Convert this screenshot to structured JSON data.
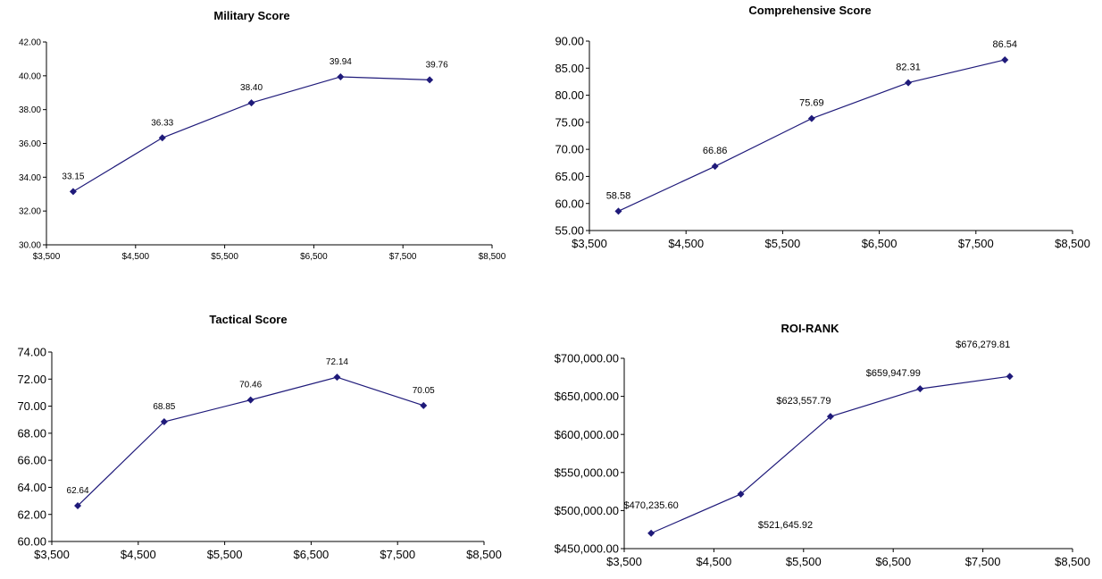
{
  "chart_data": [
    {
      "type": "line",
      "title": "Military Score",
      "x": [
        3800,
        4800,
        5800,
        6800,
        7800
      ],
      "series": [
        {
          "values": [
            33.15,
            36.33,
            38.4,
            39.94,
            39.76
          ]
        }
      ],
      "data_labels": [
        "33.15",
        "36.33",
        "38.40",
        "39.94",
        "39.76"
      ],
      "xlim": [
        3500,
        8500
      ],
      "ylim": [
        30,
        42
      ],
      "xticks": [
        3500,
        4500,
        5500,
        6500,
        7500,
        8500
      ],
      "xtick_labels": [
        "$3,500",
        "$4,500",
        "$5,500",
        "$6,500",
        "$7,500",
        "$8,500"
      ],
      "yticks": [
        30,
        32,
        34,
        36,
        38,
        40,
        42
      ],
      "ytick_labels": [
        "30.00",
        "32.00",
        "34.00",
        "36.00",
        "38.00",
        "40.00",
        "42.00"
      ],
      "grid": false,
      "color": "#1f1a7a"
    },
    {
      "type": "line",
      "title": "Comprehensive Score",
      "x": [
        3800,
        4800,
        5800,
        6800,
        7800
      ],
      "series": [
        {
          "values": [
            58.58,
            66.86,
            75.69,
            82.31,
            86.54
          ]
        }
      ],
      "data_labels": [
        "58.58",
        "66.86",
        "75.69",
        "82.31",
        "86.54"
      ],
      "xlim": [
        3500,
        8500
      ],
      "ylim": [
        55,
        90
      ],
      "xticks": [
        3500,
        4500,
        5500,
        6500,
        7500,
        8500
      ],
      "xtick_labels": [
        "$3,500",
        "$4,500",
        "$5,500",
        "$6,500",
        "$7,500",
        "$8,500"
      ],
      "yticks": [
        55,
        60,
        65,
        70,
        75,
        80,
        85,
        90
      ],
      "ytick_labels": [
        "55.00",
        "60.00",
        "65.00",
        "70.00",
        "75.00",
        "80.00",
        "85.00",
        "90.00"
      ],
      "grid": false,
      "color": "#1f1a7a"
    },
    {
      "type": "line",
      "title": "Tactical Score",
      "x": [
        3800,
        4800,
        5800,
        6800,
        7800
      ],
      "series": [
        {
          "values": [
            62.64,
            68.85,
            70.46,
            72.14,
            70.05
          ]
        }
      ],
      "data_labels": [
        "62.64",
        "68.85",
        "70.46",
        "72.14",
        "70.05"
      ],
      "xlim": [
        3500,
        8500
      ],
      "ylim": [
        60,
        74
      ],
      "xticks": [
        3500,
        4500,
        5500,
        6500,
        7500,
        8500
      ],
      "xtick_labels": [
        "$3,500",
        "$4,500",
        "$5,500",
        "$6,500",
        "$7,500",
        "$8,500"
      ],
      "yticks": [
        60,
        62,
        64,
        66,
        68,
        70,
        72,
        74
      ],
      "ytick_labels": [
        "60.00",
        "62.00",
        "64.00",
        "66.00",
        "68.00",
        "70.00",
        "72.00",
        "74.00"
      ],
      "grid": false,
      "color": "#1f1a7a"
    },
    {
      "type": "line",
      "title": "ROI-RANK",
      "x": [
        3800,
        4800,
        5800,
        6800,
        7800
      ],
      "series": [
        {
          "values": [
            470235.6,
            521645.92,
            623557.79,
            659947.99,
            676279.81
          ]
        }
      ],
      "data_labels": [
        "$470,235.60",
        "$521,645.92",
        "$623,557.79",
        "$659,947.99",
        "$676,279.81"
      ],
      "xlim": [
        3500,
        8500
      ],
      "ylim": [
        450000,
        700000
      ],
      "xticks": [
        3500,
        4500,
        5500,
        6500,
        7500,
        8500
      ],
      "xtick_labels": [
        "$3,500",
        "$4,500",
        "$5,500",
        "$6,500",
        "$7,500",
        "$8,500"
      ],
      "yticks": [
        450000,
        500000,
        550000,
        600000,
        650000,
        700000
      ],
      "ytick_labels": [
        "$450,000.00",
        "$500,000.00",
        "$550,000.00",
        "$600,000.00",
        "$650,000.00",
        "$700,000.00"
      ],
      "grid": false,
      "color": "#1f1a7a"
    }
  ]
}
